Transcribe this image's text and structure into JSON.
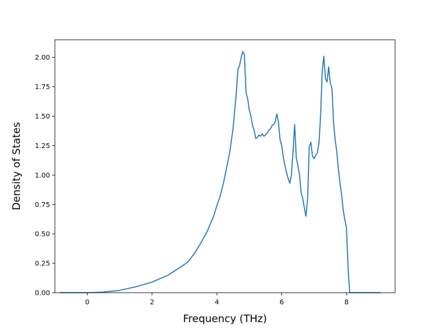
{
  "chart_data": {
    "type": "line",
    "title": "",
    "xlabel": "Frequency (THz)",
    "ylabel": "Density of States",
    "xlim": [
      -1.0,
      9.5
    ],
    "ylim": [
      0.0,
      2.15
    ],
    "xticks": [
      0,
      2,
      4,
      6,
      8
    ],
    "xtick_labels": [
      "0",
      "2",
      "4",
      "6",
      "8"
    ],
    "yticks": [
      0.0,
      0.25,
      0.5,
      0.75,
      1.0,
      1.25,
      1.5,
      1.75,
      2.0
    ],
    "ytick_labels": [
      "0.00",
      "0.25",
      "0.50",
      "0.75",
      "1.00",
      "1.25",
      "1.50",
      "1.75",
      "2.00"
    ],
    "grid": false,
    "series": [
      {
        "color": "#1f77b4",
        "x": [
          -0.85,
          0.0,
          0.5,
          1.0,
          1.5,
          2.0,
          2.5,
          3.0,
          3.1,
          3.3,
          3.5,
          3.7,
          3.9,
          4.0,
          4.1,
          4.2,
          4.3,
          4.4,
          4.45,
          4.5,
          4.55,
          4.6,
          4.65,
          4.7,
          4.75,
          4.8,
          4.85,
          4.9,
          4.95,
          5.0,
          5.05,
          5.1,
          5.15,
          5.2,
          5.25,
          5.3,
          5.35,
          5.4,
          5.45,
          5.5,
          5.55,
          5.6,
          5.65,
          5.7,
          5.75,
          5.8,
          5.85,
          5.9,
          5.95,
          6.0,
          6.05,
          6.1,
          6.15,
          6.2,
          6.25,
          6.3,
          6.35,
          6.4,
          6.45,
          6.5,
          6.55,
          6.6,
          6.65,
          6.7,
          6.75,
          6.8,
          6.85,
          6.9,
          6.95,
          7.0,
          7.05,
          7.1,
          7.15,
          7.2,
          7.25,
          7.3,
          7.35,
          7.4,
          7.45,
          7.5,
          7.55,
          7.6,
          7.65,
          7.7,
          7.75,
          7.8,
          7.85,
          7.9,
          7.95,
          8.0,
          8.05,
          8.1,
          8.15,
          8.2,
          8.25,
          8.3,
          8.5,
          9.05
        ],
        "y": [
          0.0,
          0.0,
          0.005,
          0.02,
          0.05,
          0.09,
          0.15,
          0.24,
          0.26,
          0.33,
          0.42,
          0.52,
          0.65,
          0.74,
          0.82,
          0.93,
          1.06,
          1.2,
          1.3,
          1.4,
          1.55,
          1.7,
          1.9,
          1.93,
          2.0,
          2.05,
          2.02,
          1.7,
          1.65,
          1.55,
          1.5,
          1.42,
          1.38,
          1.31,
          1.32,
          1.34,
          1.33,
          1.35,
          1.33,
          1.34,
          1.36,
          1.38,
          1.39,
          1.42,
          1.43,
          1.45,
          1.52,
          1.45,
          1.3,
          1.25,
          1.15,
          1.08,
          1.02,
          0.97,
          0.93,
          1.0,
          1.2,
          1.43,
          1.15,
          1.08,
          1.0,
          0.85,
          0.8,
          0.72,
          0.65,
          0.8,
          1.24,
          1.28,
          1.16,
          1.14,
          1.17,
          1.19,
          1.27,
          1.5,
          1.88,
          2.01,
          1.82,
          1.79,
          1.92,
          1.78,
          1.74,
          1.45,
          1.3,
          1.2,
          1.05,
          0.93,
          0.83,
          0.7,
          0.62,
          0.55,
          0.2,
          0.0,
          0.0,
          0.0,
          0.0,
          0.0,
          0.0,
          0.0
        ]
      }
    ]
  }
}
